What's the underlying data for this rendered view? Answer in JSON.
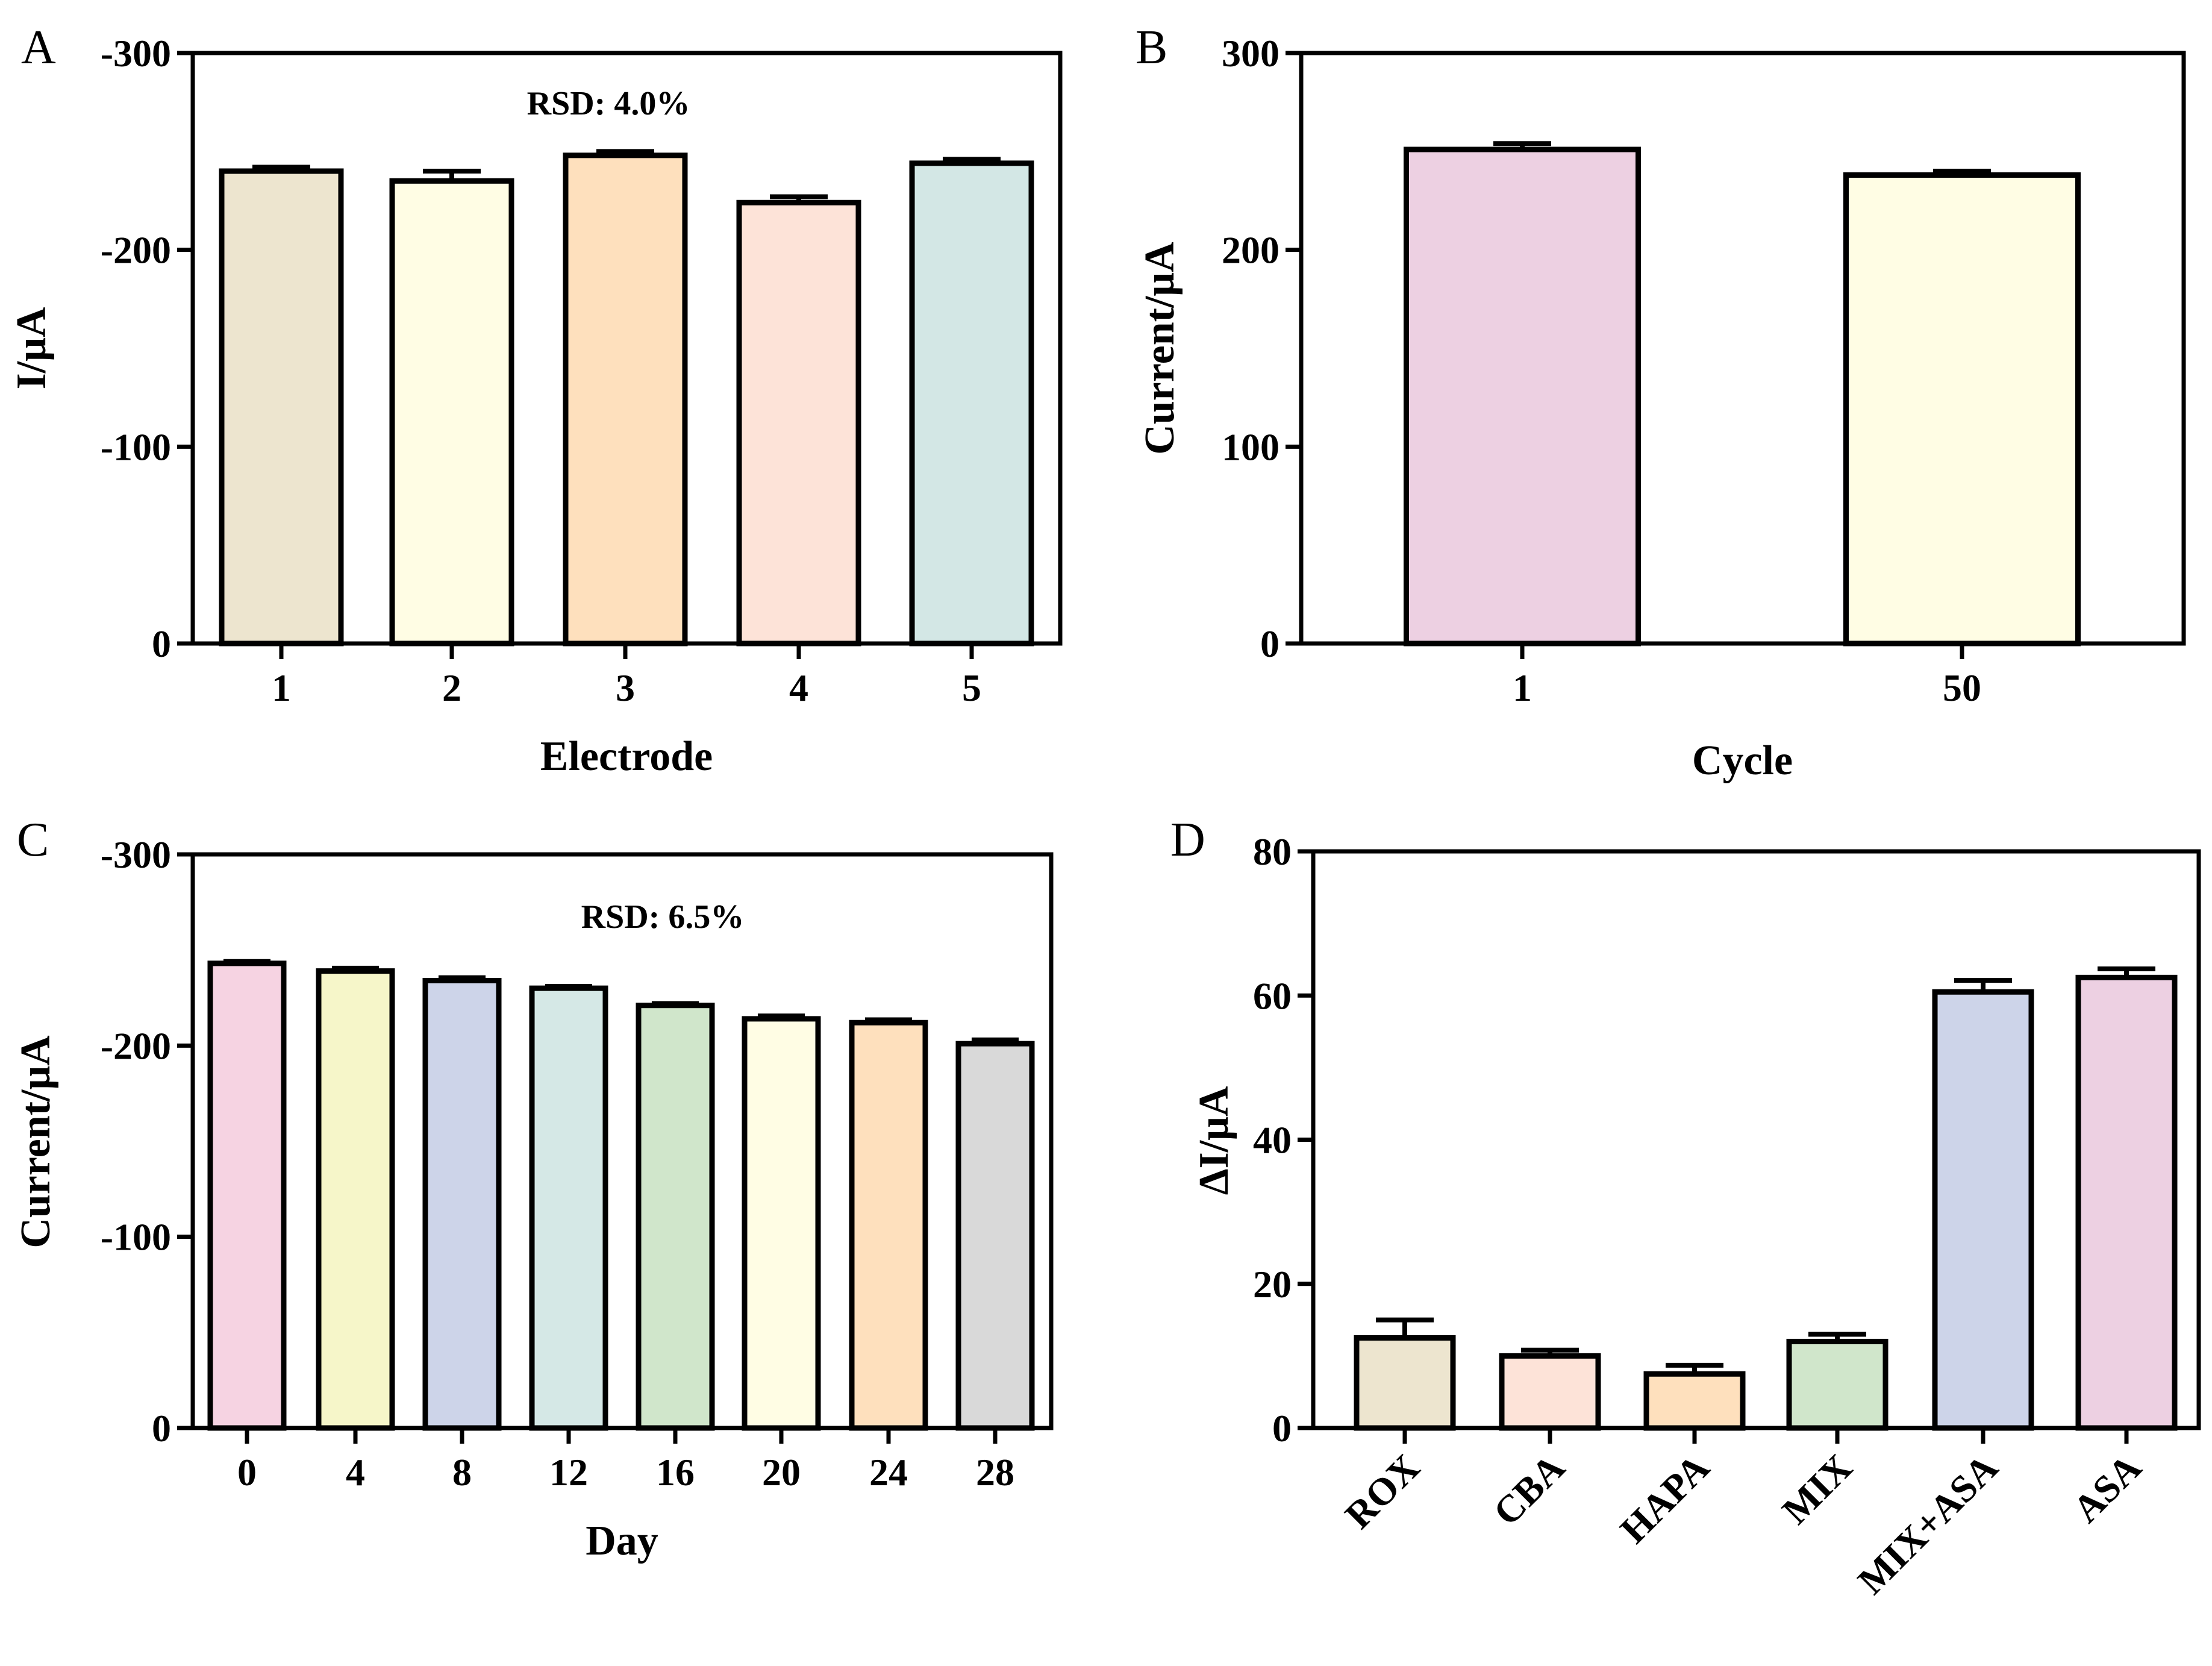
{
  "chart_data": [
    {
      "panel": "A",
      "type": "bar",
      "categories": [
        "1",
        "2",
        "3",
        "4",
        "5"
      ],
      "values": [
        -240,
        -235,
        -248,
        -224,
        -244
      ],
      "errors": [
        2,
        5,
        2,
        3,
        2
      ],
      "colors": [
        "#ede5cf",
        "#fffde4",
        "#fee0bd",
        "#fde3d8",
        "#d3e7e5"
      ],
      "xlabel": "Electrode",
      "ylabel": "I/μA",
      "ylim": [
        0,
        -300
      ],
      "yticks": [
        0,
        -100,
        -200,
        -300
      ],
      "annotation": "RSD: 4.0%"
    },
    {
      "panel": "B",
      "type": "bar",
      "categories": [
        "1",
        "50"
      ],
      "values": [
        251,
        238
      ],
      "errors": [
        3,
        2
      ],
      "colors": [
        "#edd0e2",
        "#fffde4"
      ],
      "xlabel": "Cycle",
      "ylabel": "Current/μA",
      "ylim": [
        0,
        300
      ],
      "yticks": [
        0,
        100,
        200,
        300
      ]
    },
    {
      "panel": "C",
      "type": "bar",
      "categories": [
        "0",
        "4",
        "8",
        "12",
        "16",
        "20",
        "24",
        "28"
      ],
      "values": [
        -243,
        -239,
        -234,
        -230,
        -221,
        -214,
        -212,
        -201
      ],
      "errors": [
        1,
        1.5,
        1.5,
        1,
        1,
        1.5,
        1.5,
        2
      ],
      "colors": [
        "#f6d3e2",
        "#f6f6c9",
        "#cdd4e9",
        "#d5e8e6",
        "#d0e6cb",
        "#fffde4",
        "#fee0bd",
        "#d9d9d9"
      ],
      "xlabel": "Day",
      "ylabel": "Current/μA",
      "ylim": [
        0,
        -300
      ],
      "yticks": [
        0,
        -100,
        -200,
        -300
      ],
      "annotation": "RSD: 6.5%"
    },
    {
      "panel": "D",
      "type": "bar",
      "categories": [
        "ROX",
        "CBA",
        "HAPA",
        "MIX",
        "MIX+ASA",
        "ASA"
      ],
      "values": [
        12.5,
        10,
        7.5,
        12,
        60.5,
        62.5
      ],
      "errors": [
        2.5,
        0.8,
        1.2,
        1,
        1.6,
        1.2
      ],
      "colors": [
        "#ede5cf",
        "#fde3d8",
        "#fee0bd",
        "#d0e6cb",
        "#cdd4e9",
        "#edd0e2"
      ],
      "xlabel": "",
      "ylabel": "ΔI/μA",
      "ylim": [
        0,
        80
      ],
      "yticks": [
        0,
        20,
        40,
        60,
        80
      ]
    }
  ]
}
